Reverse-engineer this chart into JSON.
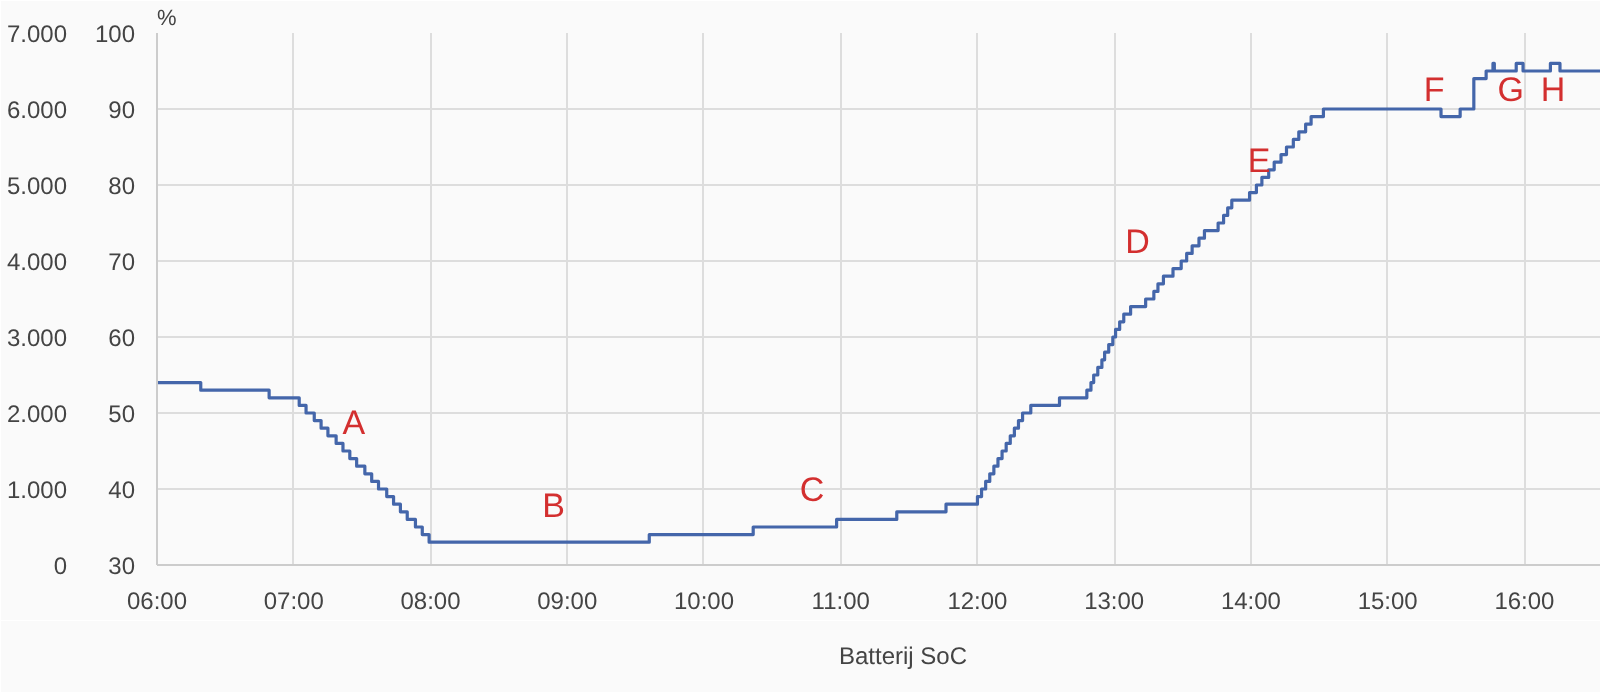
{
  "chart_data": {
    "type": "step",
    "y2label": "%",
    "legend": "bottom",
    "grid": true,
    "line_style": "solid",
    "marker": "none",
    "xlim": [
      6,
      16.56
    ],
    "xticks": [
      {
        "value": 6,
        "label": "06:00"
      },
      {
        "value": 7,
        "label": "07:00"
      },
      {
        "value": 8,
        "label": "08:00"
      },
      {
        "value": 9,
        "label": "09:00"
      },
      {
        "value": 10,
        "label": "10:00"
      },
      {
        "value": 11,
        "label": "11:00"
      },
      {
        "value": 12,
        "label": "12:00"
      },
      {
        "value": 13,
        "label": "13:00"
      },
      {
        "value": 14,
        "label": "14:00"
      },
      {
        "value": 15,
        "label": "15:00"
      },
      {
        "value": 16,
        "label": "16:00"
      }
    ],
    "ylim": [
      0,
      7000
    ],
    "yticks": [
      0,
      {
        "value": 1000,
        "label": "1.000"
      },
      {
        "value": 2000,
        "label": "2.000"
      },
      {
        "value": 3000,
        "label": "3.000"
      },
      {
        "value": 4000,
        "label": "4.000"
      },
      {
        "value": 5000,
        "label": "5.000"
      },
      {
        "value": 6000,
        "label": "6.000"
      },
      {
        "value": 7000,
        "label": "7.000"
      }
    ],
    "y2lim": [
      30,
      100
    ],
    "y2ticks": [
      30,
      40,
      50,
      60,
      70,
      80,
      90,
      100
    ],
    "series": [
      {
        "name": "Batterij SoC",
        "color": "#4466aa",
        "axis": "y2",
        "x": [
          6.0,
          6.32,
          6.82,
          7.04,
          7.09,
          7.15,
          7.2,
          7.25,
          7.31,
          7.36,
          7.41,
          7.46,
          7.52,
          7.57,
          7.62,
          7.68,
          7.73,
          7.78,
          7.83,
          7.89,
          7.94,
          7.99,
          9.6,
          10.36,
          10.97,
          11.41,
          11.77,
          12.0,
          12.03,
          12.06,
          12.09,
          12.12,
          12.15,
          12.18,
          12.21,
          12.24,
          12.27,
          12.3,
          12.33,
          12.39,
          12.6,
          12.8,
          12.83,
          12.85,
          12.88,
          12.91,
          12.93,
          12.96,
          12.99,
          13.01,
          13.04,
          13.07,
          13.12,
          13.23,
          13.29,
          13.32,
          13.36,
          13.43,
          13.49,
          13.53,
          13.57,
          13.62,
          13.66,
          13.76,
          13.8,
          13.83,
          13.86,
          13.99,
          14.04,
          14.08,
          14.13,
          14.17,
          14.22,
          14.26,
          14.31,
          14.35,
          14.4,
          14.44,
          14.53,
          15.39,
          15.53,
          15.63,
          15.72,
          15.77,
          15.78,
          15.94,
          15.99,
          16.19,
          16.26,
          16.56
        ],
        "values": [
          54,
          53,
          52,
          51,
          50,
          49,
          48,
          47,
          46,
          45,
          44,
          43,
          42,
          41,
          40,
          39,
          38,
          37,
          36,
          35,
          34,
          33,
          34,
          35,
          36,
          37,
          38,
          39,
          40,
          41,
          42,
          43,
          44,
          45,
          46,
          47,
          48,
          49,
          50,
          51,
          52,
          53,
          54,
          55,
          56,
          57,
          58,
          59,
          60,
          61,
          62,
          63,
          64,
          65,
          66,
          67,
          68,
          69,
          70,
          71,
          72,
          73,
          74,
          75,
          76,
          77,
          78,
          79,
          80,
          81,
          82,
          83,
          84,
          85,
          86,
          87,
          88,
          89,
          90,
          89,
          90,
          94,
          95,
          96,
          95,
          96,
          95,
          96,
          95,
          95
        ]
      }
    ],
    "annotations": [
      "A",
      "B",
      "C",
      "D",
      "E",
      "F",
      "G",
      "H"
    ]
  }
}
